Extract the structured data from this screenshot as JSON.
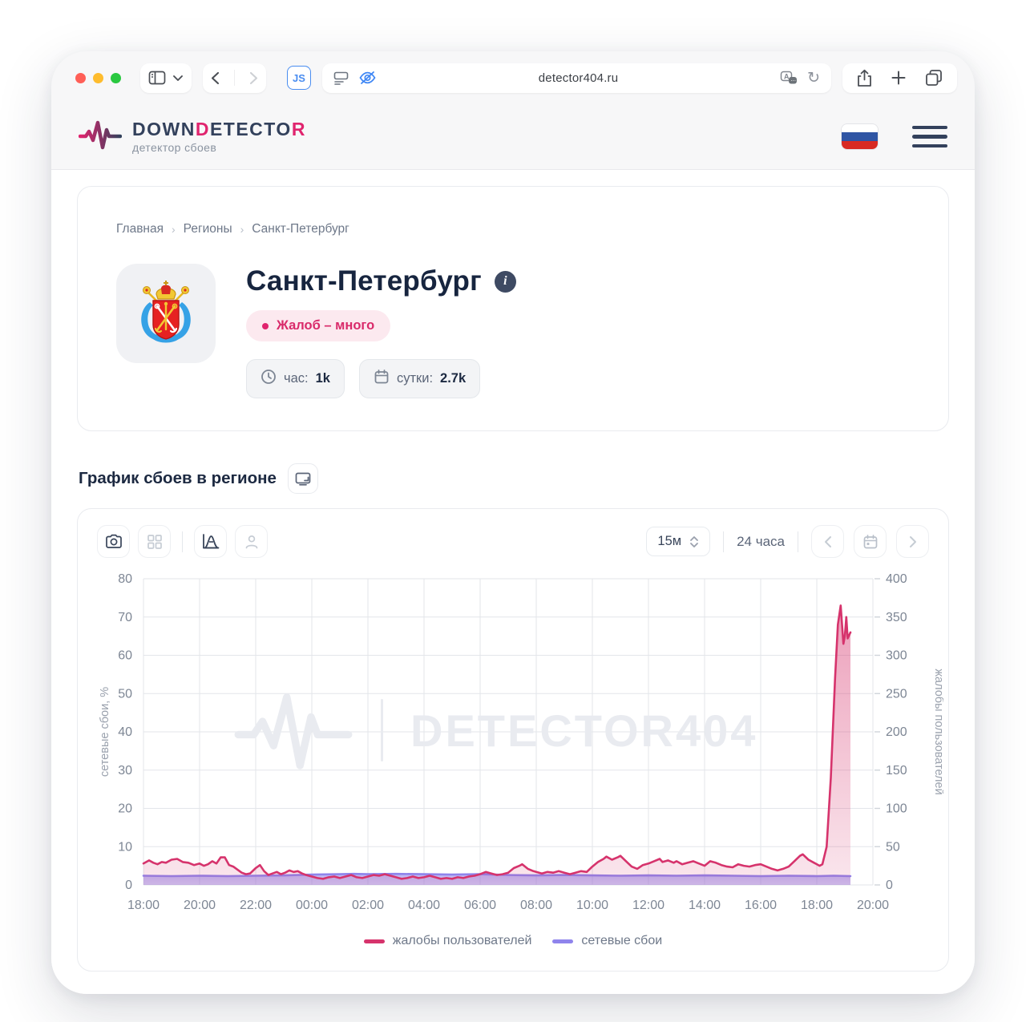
{
  "browser": {
    "url": "detector404.ru",
    "js_badge": "JS",
    "reload_glyph": "↻"
  },
  "header": {
    "brand_parts": [
      {
        "text": "DOWN",
        "color": "#33415c"
      },
      {
        "text": "D",
        "color": "#e0246e"
      },
      {
        "text": "ETECTO",
        "color": "#33415c"
      },
      {
        "text": "R",
        "color": "#e0246e"
      }
    ],
    "subtitle": "детектор сбоев"
  },
  "breadcrumb": {
    "items": [
      "Главная",
      "Регионы",
      "Санкт-Петербург"
    ],
    "separator": "›"
  },
  "region": {
    "title": "Санкт-Петербург",
    "info_glyph": "i",
    "status_label": "Жалоб – много",
    "stat_hour_label": "час:",
    "stat_hour_value": "1k",
    "stat_day_label": "сутки:",
    "stat_day_value": "2.7k"
  },
  "section": {
    "title": "График сбоев в регионе"
  },
  "chart_toolbar": {
    "interval_value": "15м",
    "range_label": "24 часа"
  },
  "watermark": {
    "text": "DETECTOR404"
  },
  "colors": {
    "accent_pink": "#d6336c",
    "accent_purple": "#8f84ec",
    "navy": "#33415c",
    "grid": "#e3e6ea",
    "tick_text": "#7d8694"
  },
  "chart_data": {
    "type": "area",
    "title": "График сбоев в регионе",
    "grid": true,
    "legend_position": "bottom",
    "x_axis": {
      "range_hours": [
        0,
        26
      ],
      "labels": [
        "18:00",
        "20:00",
        "22:00",
        "00:00",
        "02:00",
        "04:00",
        "06:00",
        "08:00",
        "10:00",
        "12:00",
        "14:00",
        "16:00",
        "18:00",
        "20:00"
      ],
      "label_step_hours": 2
    },
    "left_axis": {
      "label": "сетевые сбои, %",
      "range": [
        0,
        80
      ],
      "ticks": [
        0,
        10,
        20,
        30,
        40,
        50,
        60,
        70,
        80
      ]
    },
    "right_axis": {
      "label": "жалобы пользователей",
      "range": [
        0,
        400
      ],
      "ticks": [
        0,
        50,
        100,
        150,
        200,
        250,
        300,
        350,
        400
      ]
    },
    "series": [
      {
        "name": "жалобы пользователей",
        "axis": "right",
        "color": "#d6336c",
        "points": [
          [
            0,
            28
          ],
          [
            0.2,
            32
          ],
          [
            0.35,
            29
          ],
          [
            0.5,
            27
          ],
          [
            0.65,
            30
          ],
          [
            0.8,
            29
          ],
          [
            1,
            33
          ],
          [
            1.2,
            34
          ],
          [
            1.4,
            30
          ],
          [
            1.6,
            29
          ],
          [
            1.8,
            26
          ],
          [
            2,
            28
          ],
          [
            2.15,
            25
          ],
          [
            2.3,
            27
          ],
          [
            2.45,
            31
          ],
          [
            2.6,
            28
          ],
          [
            2.75,
            36
          ],
          [
            2.9,
            36
          ],
          [
            3.05,
            26
          ],
          [
            3.2,
            24
          ],
          [
            3.35,
            20
          ],
          [
            3.5,
            16
          ],
          [
            3.65,
            14
          ],
          [
            3.8,
            15
          ],
          [
            4,
            22
          ],
          [
            4.15,
            26
          ],
          [
            4.3,
            18
          ],
          [
            4.45,
            13
          ],
          [
            4.6,
            15
          ],
          [
            4.75,
            17
          ],
          [
            4.9,
            14
          ],
          [
            5.05,
            16
          ],
          [
            5.2,
            19
          ],
          [
            5.35,
            17
          ],
          [
            5.5,
            18
          ],
          [
            5.65,
            15
          ],
          [
            5.8,
            13
          ],
          [
            6,
            11
          ],
          [
            6.2,
            9
          ],
          [
            6.4,
            8
          ],
          [
            6.6,
            10
          ],
          [
            6.8,
            11
          ],
          [
            7,
            9
          ],
          [
            7.2,
            11
          ],
          [
            7.4,
            13
          ],
          [
            7.6,
            10
          ],
          [
            7.8,
            9
          ],
          [
            8,
            11
          ],
          [
            8.2,
            13
          ],
          [
            8.4,
            12
          ],
          [
            8.6,
            14
          ],
          [
            8.8,
            12
          ],
          [
            9,
            10
          ],
          [
            9.2,
            8
          ],
          [
            9.4,
            9
          ],
          [
            9.6,
            11
          ],
          [
            9.8,
            9
          ],
          [
            10,
            10
          ],
          [
            10.2,
            12
          ],
          [
            10.4,
            10
          ],
          [
            10.6,
            8
          ],
          [
            10.8,
            9
          ],
          [
            11,
            8
          ],
          [
            11.2,
            10
          ],
          [
            11.4,
            9
          ],
          [
            11.6,
            11
          ],
          [
            11.8,
            12
          ],
          [
            12,
            14
          ],
          [
            12.2,
            17
          ],
          [
            12.4,
            15
          ],
          [
            12.6,
            13
          ],
          [
            12.8,
            14
          ],
          [
            13,
            16
          ],
          [
            13.2,
            22
          ],
          [
            13.4,
            25
          ],
          [
            13.5,
            27
          ],
          [
            13.7,
            21
          ],
          [
            13.9,
            18
          ],
          [
            14,
            17
          ],
          [
            14.2,
            15
          ],
          [
            14.4,
            17
          ],
          [
            14.6,
            16
          ],
          [
            14.8,
            18
          ],
          [
            15,
            16
          ],
          [
            15.2,
            14
          ],
          [
            15.4,
            16
          ],
          [
            15.6,
            18
          ],
          [
            15.8,
            17
          ],
          [
            16,
            24
          ],
          [
            16.2,
            30
          ],
          [
            16.4,
            34
          ],
          [
            16.5,
            37
          ],
          [
            16.7,
            33
          ],
          [
            16.9,
            36
          ],
          [
            17,
            38
          ],
          [
            17.2,
            31
          ],
          [
            17.4,
            24
          ],
          [
            17.6,
            21
          ],
          [
            17.8,
            26
          ],
          [
            18,
            28
          ],
          [
            18.2,
            31
          ],
          [
            18.4,
            34
          ],
          [
            18.5,
            30
          ],
          [
            18.7,
            32
          ],
          [
            18.9,
            29
          ],
          [
            19,
            31
          ],
          [
            19.2,
            27
          ],
          [
            19.4,
            29
          ],
          [
            19.6,
            31
          ],
          [
            19.8,
            28
          ],
          [
            20,
            25
          ],
          [
            20.2,
            31
          ],
          [
            20.4,
            29
          ],
          [
            20.6,
            26
          ],
          [
            20.8,
            24
          ],
          [
            21,
            23
          ],
          [
            21.2,
            27
          ],
          [
            21.4,
            25
          ],
          [
            21.6,
            24
          ],
          [
            21.8,
            26
          ],
          [
            22,
            27
          ],
          [
            22.2,
            24
          ],
          [
            22.4,
            21
          ],
          [
            22.6,
            19
          ],
          [
            22.8,
            21
          ],
          [
            23,
            24
          ],
          [
            23.2,
            31
          ],
          [
            23.4,
            38
          ],
          [
            23.5,
            40
          ],
          [
            23.7,
            33
          ],
          [
            23.9,
            29
          ],
          [
            24.1,
            25
          ],
          [
            24.2,
            27
          ],
          [
            24.35,
            50
          ],
          [
            24.5,
            140
          ],
          [
            24.65,
            270
          ],
          [
            24.75,
            340
          ],
          [
            24.85,
            365
          ],
          [
            24.95,
            315
          ],
          [
            25,
            325
          ],
          [
            25.05,
            350
          ],
          [
            25.1,
            322
          ],
          [
            25.2,
            330
          ]
        ]
      },
      {
        "name": "сетевые сбои",
        "axis": "left",
        "color": "#8f84ec",
        "points": [
          [
            0,
            2.4
          ],
          [
            1,
            2.3
          ],
          [
            2,
            2.4
          ],
          [
            3,
            2.3
          ],
          [
            4,
            2.4
          ],
          [
            5,
            2.5
          ],
          [
            6,
            2.7
          ],
          [
            7,
            2.8
          ],
          [
            7.5,
            2.9
          ],
          [
            8,
            2.8
          ],
          [
            9,
            2.9
          ],
          [
            10,
            2.8
          ],
          [
            11,
            2.7
          ],
          [
            12,
            2.8
          ],
          [
            13,
            2.6
          ],
          [
            14,
            2.5
          ],
          [
            15,
            2.6
          ],
          [
            16,
            2.5
          ],
          [
            17,
            2.4
          ],
          [
            18,
            2.5
          ],
          [
            19,
            2.4
          ],
          [
            20,
            2.5
          ],
          [
            21,
            2.4
          ],
          [
            22,
            2.3
          ],
          [
            23,
            2.4
          ],
          [
            24,
            2.3
          ],
          [
            24.6,
            2.4
          ],
          [
            25.2,
            2.3
          ]
        ]
      }
    ]
  }
}
